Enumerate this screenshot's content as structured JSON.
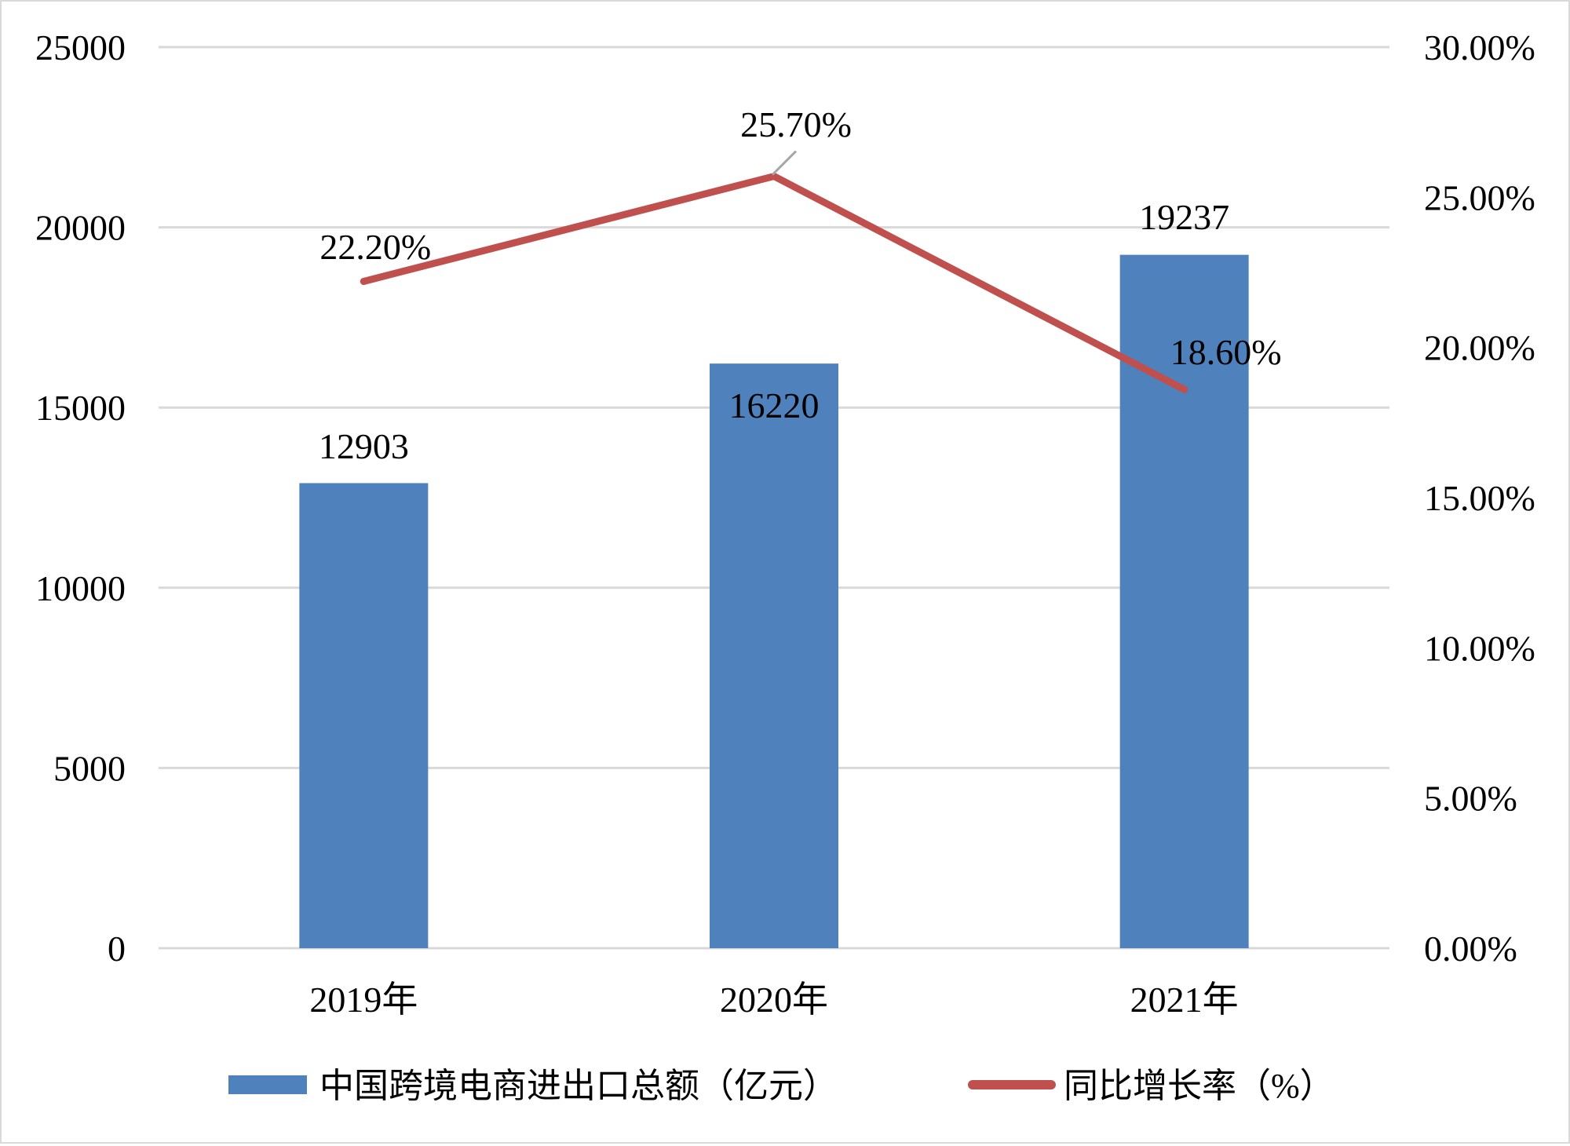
{
  "chart_data": {
    "type": "bar",
    "categories": [
      "2019年",
      "2020年",
      "2021年"
    ],
    "series": [
      {
        "name": "中国跨境电商进出口总额（亿元）",
        "type": "bar",
        "axis": "left",
        "color": "#4f81bd",
        "values": [
          12903,
          16220,
          19237
        ],
        "labels": [
          "12903",
          "16220",
          "19237"
        ]
      },
      {
        "name": "同比增长率（%）",
        "type": "line",
        "axis": "right",
        "color": "#c0504d",
        "values": [
          22.2,
          25.7,
          18.6
        ],
        "labels": [
          "22.20%",
          "25.70%",
          "18.60%"
        ]
      }
    ],
    "y_left": {
      "ylim": [
        0,
        25000
      ],
      "ticks": [
        0,
        5000,
        10000,
        15000,
        20000,
        25000
      ],
      "tick_labels": [
        "0",
        "5000",
        "10000",
        "15000",
        "20000",
        "25000"
      ]
    },
    "y_right": {
      "ylim": [
        0,
        30
      ],
      "ticks": [
        0,
        5,
        10,
        15,
        20,
        25,
        30
      ],
      "tick_labels": [
        "0.00%",
        "5.00%",
        "10.00%",
        "15.00%",
        "20.00%",
        "25.00%",
        "30.00%"
      ]
    },
    "grid": true,
    "legend": "bottom",
    "colors": {
      "grid": "#d9d9d9",
      "bar": "#4f81bd",
      "line": "#c0504d",
      "leader": "#a6a6a6"
    }
  }
}
